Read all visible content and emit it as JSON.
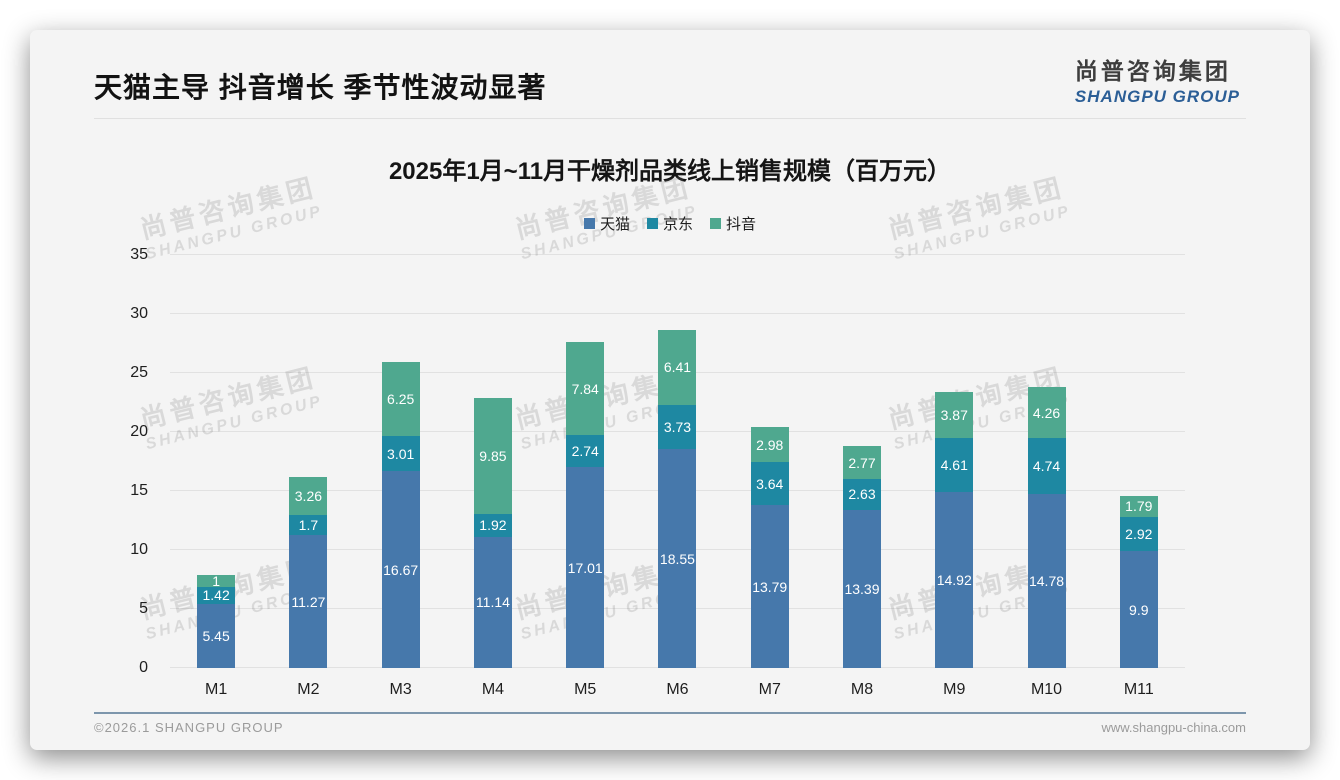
{
  "slide": {
    "title": "天猫主导 抖音增长 季节性波动显著",
    "logo": {
      "cn": "尚普咨询集团",
      "en": "SHANGPU GROUP"
    },
    "watermark": {
      "cn": "尚普咨询集团",
      "en": "SHANGPU GROUP"
    },
    "footer": {
      "left": "©2026.1 SHANGPU GROUP",
      "right": "www.shangpu-china.com"
    }
  },
  "colors": {
    "card_bg": "#f4f4f4",
    "tmall_blue": "#4678ab",
    "jd_teal": "#1e88a2",
    "douyin_green": "#4fa88f",
    "gridline": "#e1e1e1",
    "logo_en_blue": "#2b5e96",
    "footer_line": "#7d96ac"
  },
  "chart_data": {
    "type": "bar",
    "stacked": true,
    "title": "2025年1月~11月干燥剂品类线上销售规模（百万元）",
    "xlabel": "",
    "ylabel": "",
    "ylim": [
      0,
      35
    ],
    "yticks": [
      0,
      5,
      10,
      15,
      20,
      25,
      30,
      35
    ],
    "grid": true,
    "legend_position": "top",
    "categories": [
      "M1",
      "M2",
      "M3",
      "M4",
      "M5",
      "M6",
      "M7",
      "M8",
      "M9",
      "M10",
      "M11"
    ],
    "series": [
      {
        "key": "tmall",
        "name": "天猫",
        "color": "#4678ab",
        "values": [
          5.45,
          11.27,
          16.67,
          11.14,
          17.01,
          18.55,
          13.79,
          13.39,
          14.92,
          14.78,
          9.9
        ]
      },
      {
        "key": "jd",
        "name": "京东",
        "color": "#1e88a2",
        "values": [
          1.42,
          1.7,
          3.01,
          1.92,
          2.74,
          3.73,
          3.64,
          2.63,
          4.61,
          4.74,
          2.92
        ]
      },
      {
        "key": "douyin",
        "name": "抖音",
        "color": "#4fa88f",
        "values": [
          1,
          3.26,
          6.25,
          9.85,
          7.84,
          6.41,
          2.98,
          2.77,
          3.87,
          4.26,
          1.79
        ]
      }
    ]
  }
}
